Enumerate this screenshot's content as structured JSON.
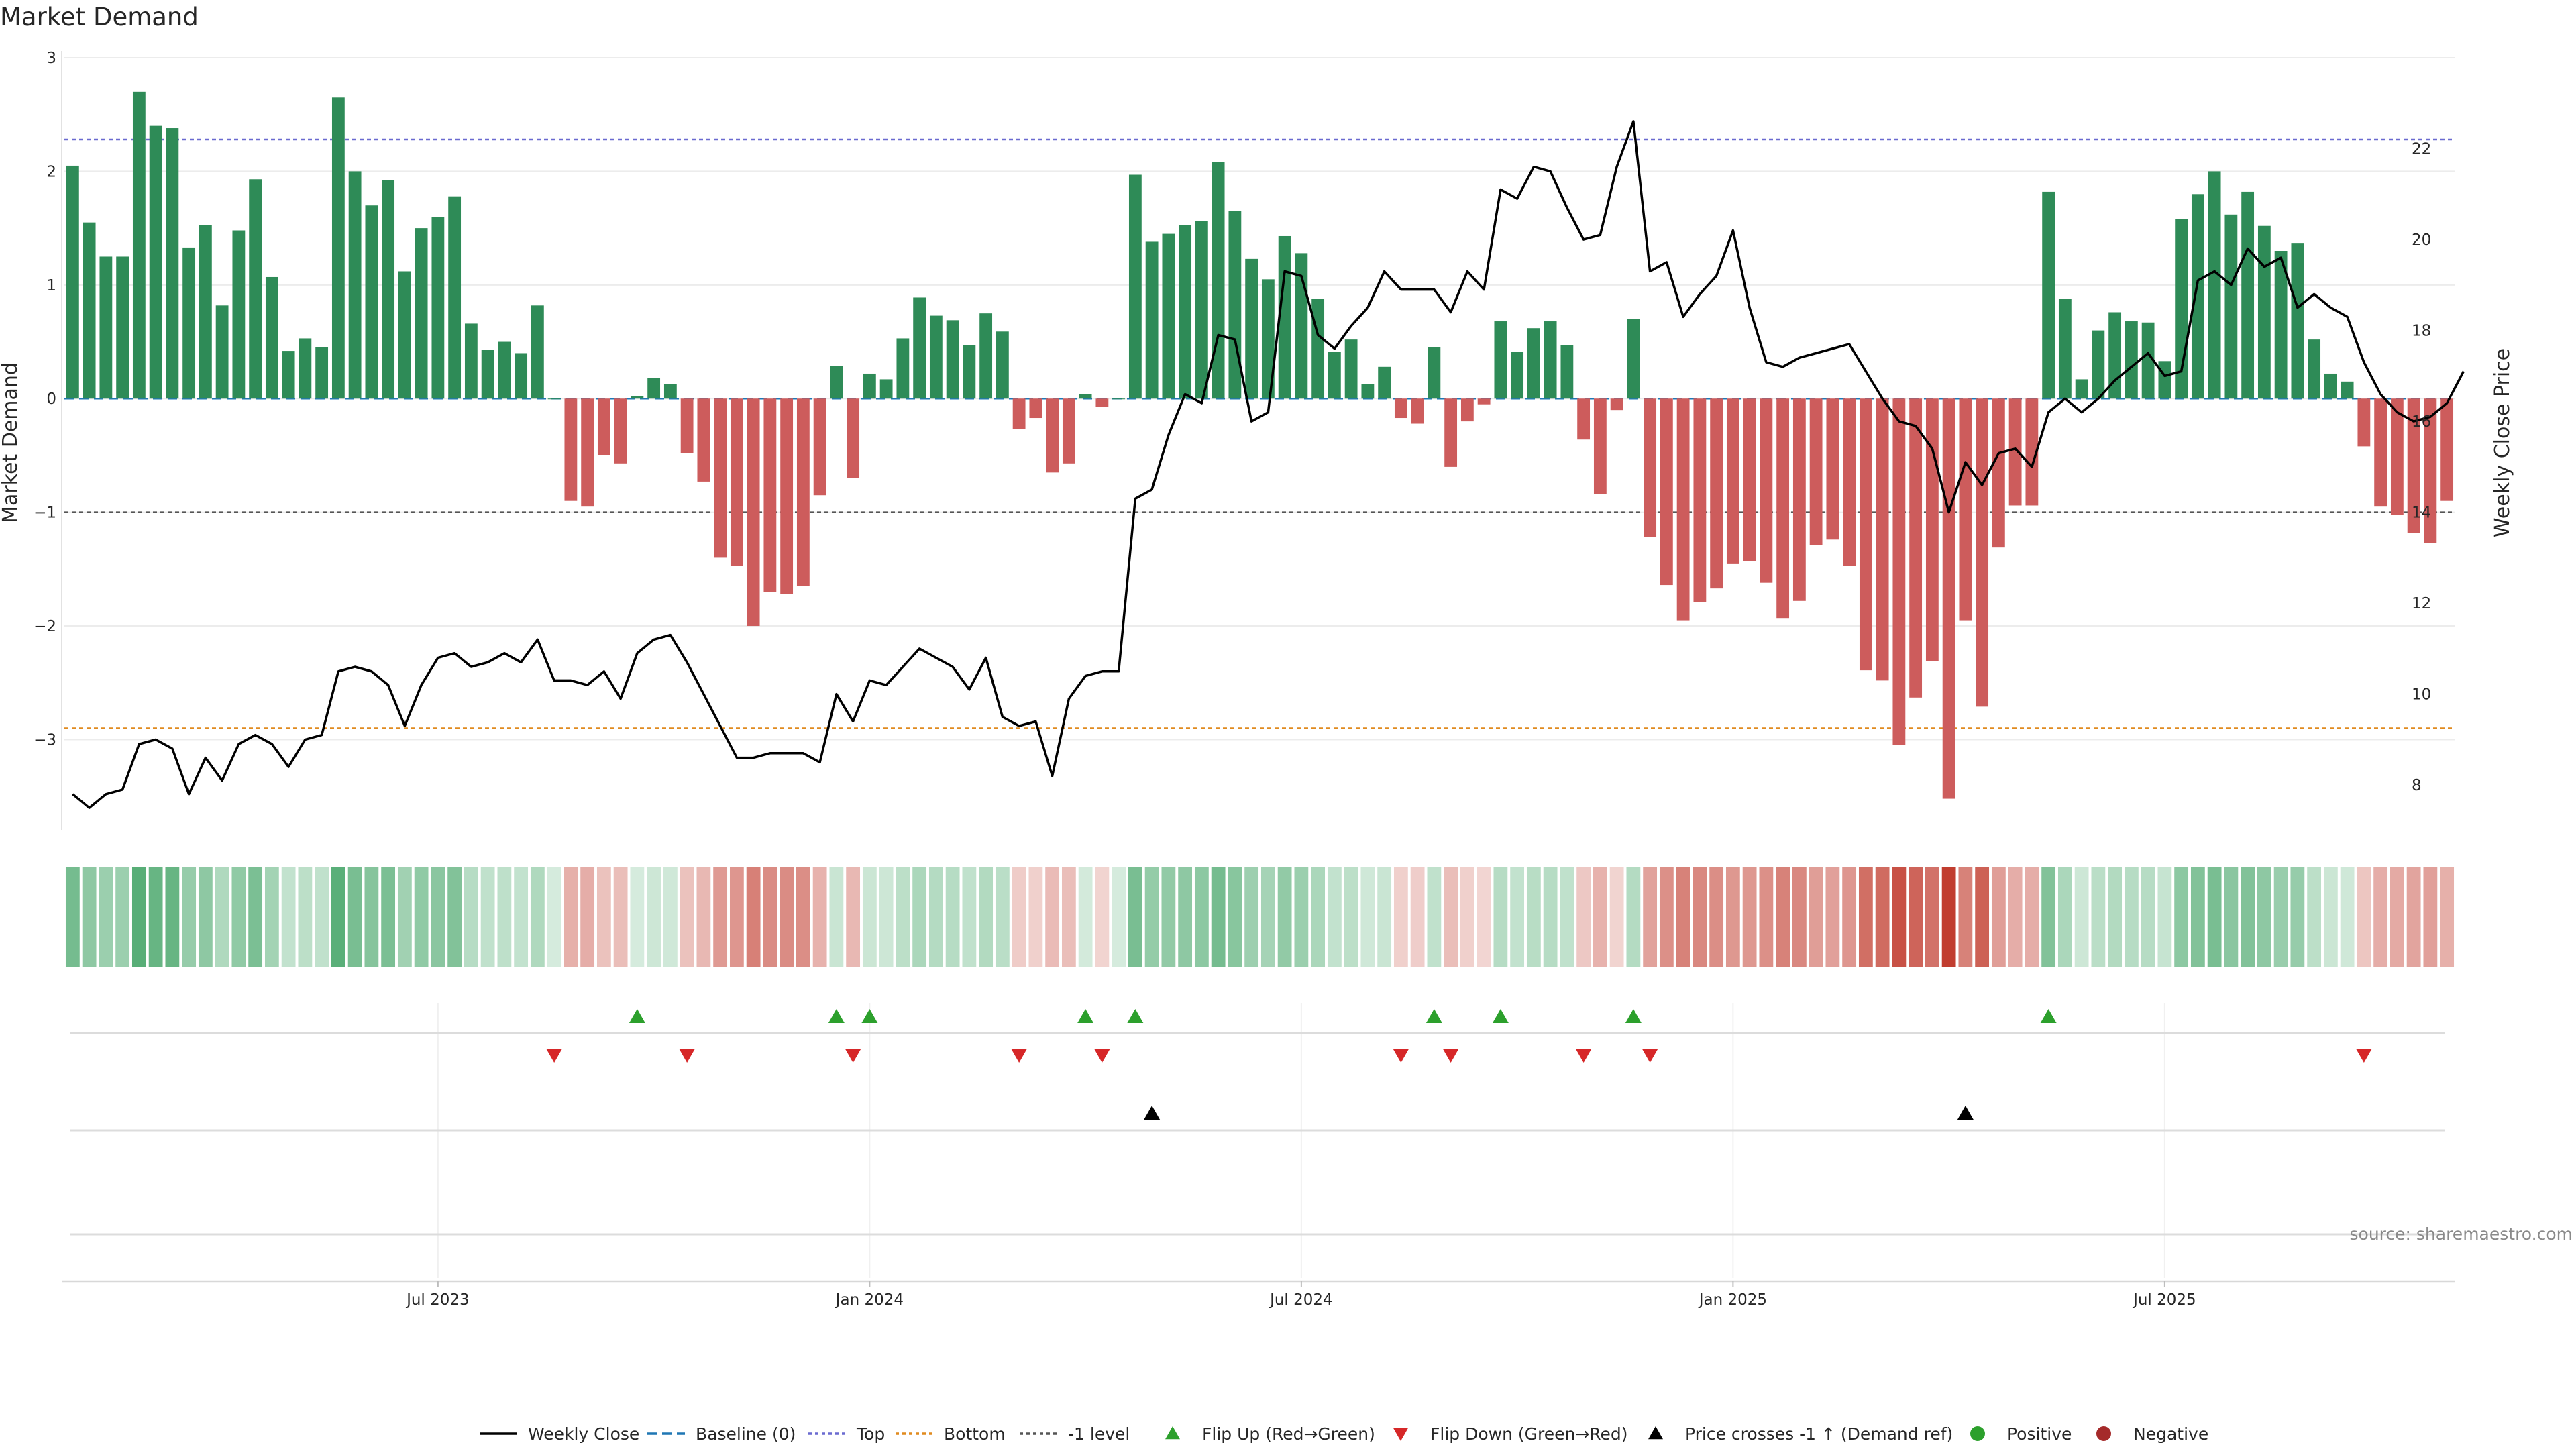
{
  "title": "Market Demand",
  "source": "source: sharemaestro.com",
  "colors": {
    "positive": "#2e8b57",
    "negative": "#cd5c5c",
    "price": "#000000",
    "baseline": "#1f77b4",
    "top": "#6a6ad0",
    "bottom": "#e08a1e",
    "minus1": "#555555",
    "flip_up": "#2ca02c",
    "flip_down": "#d62728",
    "cross": "#000000",
    "heat_pos": "#2e9a55",
    "heat_neg": "#c0392b"
  },
  "chart_data": {
    "type": "bar",
    "title": "Market Demand",
    "ylabel_left": "Market Demand",
    "ylabel_right": "Weekly Close Price",
    "ylim_left": [
      -3.8,
      3.0
    ],
    "ylim_right": [
      7.0,
      24.0
    ],
    "yticks_left": [
      3,
      2,
      1,
      0,
      -1,
      -2,
      -3
    ],
    "yticks_left_labels": [
      "3",
      "2",
      "1",
      "0",
      "−1",
      "−2",
      "−3"
    ],
    "yticks_right": [
      8,
      10,
      12,
      14,
      16,
      18,
      20,
      22
    ],
    "reference_lines": {
      "baseline": 0,
      "top": 2.28,
      "bottom": -2.9,
      "minus1": -1.0
    },
    "date_ticks": [
      {
        "index": 22,
        "label": "Jul 2023"
      },
      {
        "index": 48,
        "label": "Jan 2024"
      },
      {
        "index": 74,
        "label": "Jul 2024"
      },
      {
        "index": 100,
        "label": "Jan 2025"
      },
      {
        "index": 126,
        "label": "Jul 2025"
      }
    ],
    "demand": [
      2.05,
      1.55,
      1.25,
      1.25,
      2.7,
      2.4,
      2.38,
      1.33,
      1.53,
      0.82,
      1.48,
      1.93,
      1.07,
      0.42,
      0.53,
      0.45,
      2.65,
      2.0,
      1.7,
      1.92,
      1.12,
      1.5,
      1.6,
      1.78,
      0.66,
      0.43,
      0.5,
      0.4,
      0.82,
      0.0,
      -0.9,
      -0.95,
      -0.5,
      -0.57,
      0.02,
      0.18,
      0.13,
      -0.48,
      -0.73,
      -1.4,
      -1.47,
      -2.0,
      -1.7,
      -1.72,
      -1.65,
      -0.85,
      0.29,
      -0.7,
      0.22,
      0.17,
      0.53,
      0.89,
      0.73,
      0.69,
      0.47,
      0.75,
      0.59,
      -0.27,
      -0.17,
      -0.65,
      -0.57,
      0.04,
      -0.07,
      0.0,
      1.97,
      1.38,
      1.45,
      1.53,
      1.56,
      2.08,
      1.65,
      1.23,
      1.05,
      1.43,
      1.28,
      0.88,
      0.41,
      0.52,
      0.13,
      0.28,
      -0.17,
      -0.22,
      0.45,
      -0.6,
      -0.2,
      -0.05,
      0.68,
      0.41,
      0.62,
      0.68,
      0.47,
      -0.36,
      -0.84,
      -0.1,
      0.7,
      -1.22,
      -1.64,
      -1.95,
      -1.79,
      -1.67,
      -1.45,
      -1.43,
      -1.62,
      -1.93,
      -1.78,
      -1.29,
      -1.24,
      -1.47,
      -2.39,
      -2.48,
      -3.05,
      -2.63,
      -2.31,
      -3.52,
      -1.95,
      -2.71,
      -1.31,
      -0.94,
      -0.94,
      1.82,
      0.88,
      0.17,
      0.6,
      0.76,
      0.68,
      0.67,
      0.33,
      1.58,
      1.8,
      2.0,
      1.62,
      1.82,
      1.52,
      1.3,
      1.37,
      0.52,
      0.22,
      0.15,
      -0.42,
      -0.95,
      -1.02,
      -1.18,
      -1.27,
      -0.9
    ],
    "price": [
      7.8,
      7.5,
      7.8,
      7.9,
      8.9,
      9.0,
      8.8,
      7.8,
      8.6,
      8.1,
      8.9,
      9.1,
      8.9,
      8.4,
      9.0,
      9.1,
      10.5,
      10.6,
      10.5,
      10.2,
      9.3,
      10.2,
      10.8,
      10.9,
      10.6,
      10.7,
      10.9,
      10.7,
      11.2,
      10.3,
      10.3,
      10.2,
      10.5,
      9.9,
      10.9,
      11.2,
      11.3,
      10.7,
      10.0,
      9.3,
      8.6,
      8.6,
      8.7,
      8.7,
      8.7,
      8.5,
      10.0,
      9.4,
      10.3,
      10.2,
      10.6,
      11.0,
      10.8,
      10.6,
      10.1,
      10.8,
      9.5,
      9.3,
      9.4,
      8.2,
      9.9,
      10.4,
      10.5,
      10.5,
      14.3,
      14.5,
      15.7,
      16.6,
      16.4,
      17.9,
      17.8,
      16.0,
      16.2,
      19.3,
      19.2,
      17.9,
      17.6,
      18.1,
      18.5,
      19.3,
      18.9,
      18.9,
      18.9,
      18.4,
      19.3,
      18.9,
      21.1,
      20.9,
      21.6,
      21.5,
      20.7,
      20.0,
      20.1,
      21.6,
      22.6,
      19.3,
      19.5,
      18.3,
      18.8,
      19.2,
      20.2,
      18.5,
      17.3,
      17.2,
      17.4,
      17.5,
      17.6,
      17.7,
      17.1,
      16.5,
      16.0,
      15.9,
      15.4,
      14.0,
      15.1,
      14.6,
      15.3,
      15.4,
      15.0,
      16.2,
      16.5,
      16.2,
      16.5,
      16.9,
      17.2,
      17.5,
      17.0,
      17.1,
      19.1,
      19.3,
      19.0,
      19.8,
      19.4,
      19.6,
      18.5,
      18.8,
      18.5,
      18.3,
      17.3,
      16.6,
      16.2,
      16.0,
      16.1,
      16.4,
      17.1
    ],
    "flip_up": [
      34,
      46,
      48,
      61,
      64,
      82,
      86,
      94,
      119
    ],
    "flip_down": [
      29,
      37,
      47,
      57,
      62,
      80,
      83,
      91,
      95,
      138
    ],
    "price_crosses": [
      65,
      114
    ],
    "legend": [
      "Weekly Close",
      "Baseline (0)",
      "Top",
      "Bottom",
      "-1 level",
      "Flip Up (Red→Green)",
      "Flip Down (Green→Red)",
      "Price crosses -1 ↑ (Demand ref)",
      "Positive",
      "Negative"
    ]
  }
}
